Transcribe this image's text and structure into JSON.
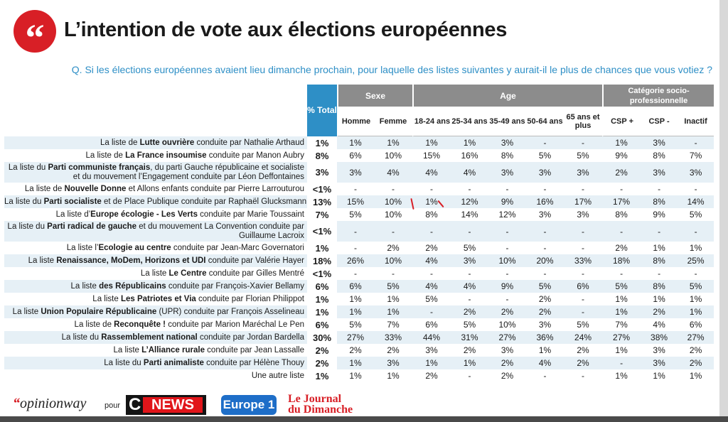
{
  "header": {
    "quote_mark": "“",
    "title": "L’intention de vote aux élections européennes",
    "question": "Q. Si les élections européennes avaient lieu dimanche prochain, pour laquelle des listes suivantes y aurait-il le plus de chances que vous votiez ?"
  },
  "table": {
    "total_header": "% Total",
    "groups": {
      "sexe": "Sexe",
      "age": "Age",
      "csp": "Catégorie socio-professionnelle"
    },
    "subheaders": [
      "Homme",
      "Femme",
      "18-24 ans",
      "25-34 ans",
      "35-49 ans",
      "50-64 ans",
      "65 ans et plus",
      "CSP +",
      "CSP -",
      "Inactif"
    ],
    "rows": [
      {
        "label": {
          "pre": "La liste de ",
          "bold": "Lutte ouvrière",
          "post": " conduite par Nathalie Arthaud"
        },
        "total": "1%",
        "values": [
          "1%",
          "1%",
          "1%",
          "1%",
          "3%",
          "-",
          "-",
          "1%",
          "3%",
          "-"
        ]
      },
      {
        "label": {
          "pre": "La liste de ",
          "bold": "La France insoumise",
          "post": " conduite par Manon Aubry"
        },
        "total": "8%",
        "values": [
          "6%",
          "10%",
          "15%",
          "16%",
          "8%",
          "5%",
          "5%",
          "9%",
          "8%",
          "7%"
        ]
      },
      {
        "label": {
          "pre": "La liste du ",
          "bold": "Parti communiste français",
          "post": ", du parti Gauche républicaine et socialiste et du mouvement l’Engagement conduite par Léon Deffontaines"
        },
        "total": "3%",
        "values": [
          "3%",
          "4%",
          "4%",
          "4%",
          "3%",
          "3%",
          "3%",
          "2%",
          "3%",
          "3%"
        ]
      },
      {
        "label": {
          "pre": "La liste de ",
          "bold": "Nouvelle Donne",
          "post": " et Allons enfants conduite par Pierre Larrouturou"
        },
        "total": "<1%",
        "values": [
          "-",
          "-",
          "-",
          "-",
          "-",
          "-",
          "-",
          "-",
          "-",
          "-"
        ]
      },
      {
        "label": {
          "pre": "La liste du ",
          "bold": "Parti socialiste",
          "post": " et de Place Publique conduite par Raphaël Glucksmann"
        },
        "total": "13%",
        "values": [
          "15%",
          "10%",
          "1%",
          "12%",
          "9%",
          "16%",
          "17%",
          "17%",
          "8%",
          "14%"
        ]
      },
      {
        "label": {
          "pre": "La liste d’",
          "bold": "Europe écologie - Les Verts",
          "post": " conduite par Marie Toussaint"
        },
        "total": "7%",
        "values": [
          "5%",
          "10%",
          "8%",
          "14%",
          "12%",
          "3%",
          "3%",
          "8%",
          "9%",
          "5%"
        ]
      },
      {
        "label": {
          "pre": "La liste du ",
          "bold": "Parti radical de gauche",
          "post": " et du mouvement La Convention conduite par Guillaume Lacroix"
        },
        "total": "<1%",
        "values": [
          "-",
          "-",
          "-",
          "-",
          "-",
          "-",
          "-",
          "-",
          "-",
          "-"
        ]
      },
      {
        "label": {
          "pre": "La liste l’",
          "bold": "Ecologie au centre",
          "post": " conduite par Jean-Marc Governatori"
        },
        "total": "1%",
        "values": [
          "-",
          "2%",
          "2%",
          "5%",
          "-",
          "-",
          "-",
          "2%",
          "1%",
          "1%"
        ]
      },
      {
        "label": {
          "pre": "La liste ",
          "bold": "Renaissance, MoDem, Horizons et UDI",
          "post": " conduite par Valérie Hayer"
        },
        "total": "18%",
        "values": [
          "26%",
          "10%",
          "4%",
          "3%",
          "10%",
          "20%",
          "33%",
          "18%",
          "8%",
          "25%"
        ]
      },
      {
        "label": {
          "pre": "La liste ",
          "bold": "Le Centre",
          "post": " conduite par Gilles Mentré"
        },
        "total": "<1%",
        "values": [
          "-",
          "-",
          "-",
          "-",
          "-",
          "-",
          "-",
          "-",
          "-",
          "-"
        ]
      },
      {
        "label": {
          "pre": "La liste ",
          "bold": "des Républicains",
          "post": " conduite par François-Xavier Bellamy"
        },
        "total": "6%",
        "values": [
          "6%",
          "5%",
          "4%",
          "4%",
          "9%",
          "5%",
          "6%",
          "5%",
          "8%",
          "5%"
        ]
      },
      {
        "label": {
          "pre": "La liste ",
          "bold": "Les Patriotes et Via",
          "post": " conduite par Florian Philippot"
        },
        "total": "1%",
        "values": [
          "1%",
          "1%",
          "5%",
          "-",
          "-",
          "2%",
          "-",
          "1%",
          "1%",
          "1%"
        ]
      },
      {
        "label": {
          "pre": "La liste ",
          "bold": "Union Populaire Républicaine",
          "post": " (UPR) conduite par François Asselineau"
        },
        "total": "1%",
        "values": [
          "1%",
          "1%",
          "-",
          "2%",
          "2%",
          "2%",
          "-",
          "1%",
          "2%",
          "1%"
        ]
      },
      {
        "label": {
          "pre": "La liste de ",
          "bold": "Reconquête !",
          "post": " conduite par Marion Maréchal Le Pen"
        },
        "total": "6%",
        "values": [
          "5%",
          "7%",
          "6%",
          "5%",
          "10%",
          "3%",
          "5%",
          "7%",
          "4%",
          "6%"
        ]
      },
      {
        "label": {
          "pre": "La liste du ",
          "bold": "Rassemblement national",
          "post": " conduite par Jordan Bardella"
        },
        "total": "30%",
        "values": [
          "27%",
          "33%",
          "44%",
          "31%",
          "27%",
          "36%",
          "24%",
          "27%",
          "38%",
          "27%"
        ]
      },
      {
        "label": {
          "pre": "La liste ",
          "bold": "L’Alliance rurale",
          "post": " conduite par Jean Lassalle"
        },
        "total": "2%",
        "values": [
          "2%",
          "2%",
          "3%",
          "2%",
          "3%",
          "1%",
          "2%",
          "1%",
          "3%",
          "2%"
        ]
      },
      {
        "label": {
          "pre": "La liste du ",
          "bold": "Parti animaliste",
          "post": " conduite par Hélène Thouy"
        },
        "total": "2%",
        "values": [
          "1%",
          "3%",
          "1%",
          "1%",
          "2%",
          "4%",
          "2%",
          "-",
          "3%",
          "2%"
        ]
      },
      {
        "label": {
          "pre": "",
          "bold": "",
          "post": "Une autre liste"
        },
        "total": "1%",
        "values": [
          "1%",
          "1%",
          "2%",
          "-",
          "2%",
          "-",
          "-",
          "1%",
          "1%",
          "1%"
        ]
      }
    ]
  },
  "footer": {
    "opinionway": "opinionway",
    "opinionway_quote": "“",
    "pour": "pour",
    "cnews_c": "C",
    "cnews_news": "NEWS",
    "europe1": "Europe 1",
    "jdd_line1": "Le Journal",
    "jdd_line2": "du Dimanche"
  },
  "colors": {
    "accent_red": "#d81f26",
    "accent_blue": "#2e8fc6",
    "header_gray": "#8c8c8c",
    "row_stripe": "#e6f0f6"
  }
}
